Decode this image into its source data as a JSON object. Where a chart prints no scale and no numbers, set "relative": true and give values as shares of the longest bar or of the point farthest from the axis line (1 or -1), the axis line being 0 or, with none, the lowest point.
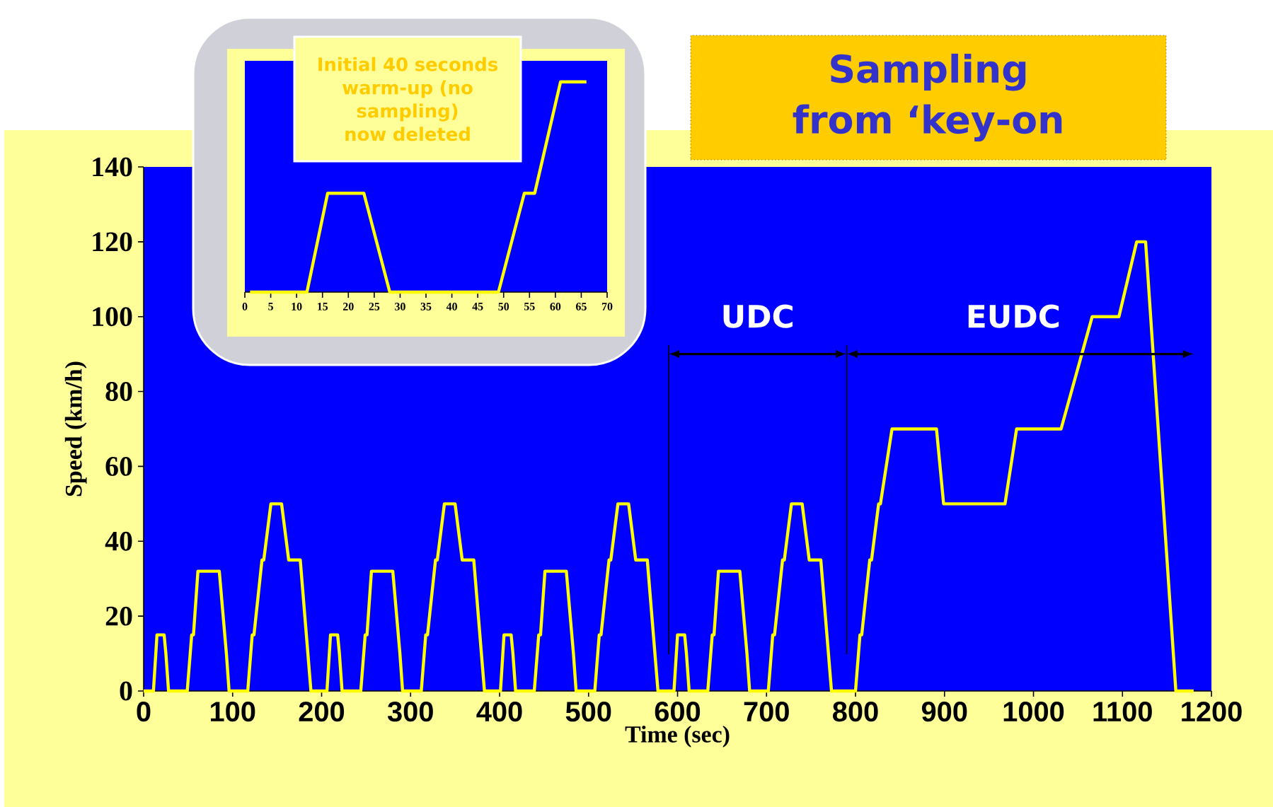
{
  "chart_data": [
    {
      "type": "line",
      "xlabel": "Time (sec)",
      "ylabel": "Speed (km/h)",
      "color": "#ffff00",
      "x": [
        0,
        11,
        15,
        23,
        25,
        28,
        49,
        54,
        56,
        61,
        85,
        93,
        96,
        117,
        122,
        124,
        133,
        135,
        143,
        155,
        163,
        176,
        188,
        195,
        206,
        210,
        218,
        220,
        223,
        244,
        249,
        251,
        256,
        280,
        288,
        291,
        312,
        317,
        319,
        328,
        330,
        338,
        350,
        358,
        371,
        383,
        390,
        401,
        405,
        413,
        415,
        418,
        439,
        444,
        446,
        451,
        475,
        483,
        486,
        507,
        512,
        514,
        523,
        525,
        533,
        545,
        553,
        566,
        578,
        585,
        596,
        600,
        608,
        610,
        613,
        634,
        639,
        641,
        646,
        670,
        678,
        681,
        702,
        707,
        709,
        718,
        720,
        728,
        740,
        748,
        761,
        773,
        780,
        800,
        805,
        807,
        816,
        818,
        826,
        828,
        841,
        891,
        899,
        968,
        981,
        1031,
        1066,
        1096,
        1116,
        1126,
        1160,
        1180
      ],
      "values": [
        0,
        0,
        15,
        15,
        10,
        0,
        0,
        15,
        15,
        32,
        32,
        10,
        0,
        0,
        15,
        15,
        35,
        35,
        50,
        50,
        35,
        35,
        0,
        0,
        0,
        15,
        15,
        10,
        0,
        0,
        15,
        15,
        32,
        32,
        10,
        0,
        0,
        15,
        15,
        35,
        35,
        50,
        50,
        35,
        35,
        0,
        0,
        0,
        15,
        15,
        10,
        0,
        0,
        15,
        15,
        32,
        32,
        10,
        0,
        0,
        15,
        15,
        35,
        35,
        50,
        50,
        35,
        35,
        0,
        0,
        0,
        15,
        15,
        10,
        0,
        0,
        15,
        15,
        32,
        32,
        10,
        0,
        0,
        15,
        15,
        35,
        35,
        50,
        50,
        35,
        35,
        0,
        0,
        0,
        15,
        15,
        35,
        35,
        50,
        50,
        70,
        70,
        50,
        50,
        70,
        70,
        100,
        100,
        120,
        120,
        0,
        0
      ],
      "xlim": [
        0,
        1200
      ],
      "ylim": [
        0,
        140
      ],
      "xticks": [
        0,
        100,
        200,
        300,
        400,
        500,
        600,
        700,
        800,
        900,
        1000,
        1100,
        1200
      ],
      "yticks": [
        0,
        20,
        40,
        60,
        80,
        100,
        120,
        140
      ],
      "ref_lines": [
        {
          "axis": "x",
          "value": 590,
          "color": "#000000"
        },
        {
          "axis": "x",
          "value": 790,
          "color": "#000000"
        }
      ],
      "annotations": [
        "Sampling from ‘key-on",
        "UDC",
        "EUDC"
      ]
    },
    {
      "type": "line",
      "relative": true,
      "color": "#ffff00",
      "tick_labels": "x",
      "x": [
        1,
        12,
        16,
        23,
        28,
        49,
        54,
        56,
        61,
        66
      ],
      "values": [
        0,
        0,
        0.47,
        0.47,
        0,
        0,
        0.47,
        0.47,
        1,
        1
      ],
      "xlim": [
        0,
        70
      ],
      "xticks": [
        0,
        5,
        10,
        15,
        20,
        25,
        30,
        35,
        40,
        45,
        50,
        55,
        60,
        65,
        70
      ],
      "annotations": [
        "Initial 40 seconds warm-up (no sampling) now deleted"
      ]
    }
  ]
}
